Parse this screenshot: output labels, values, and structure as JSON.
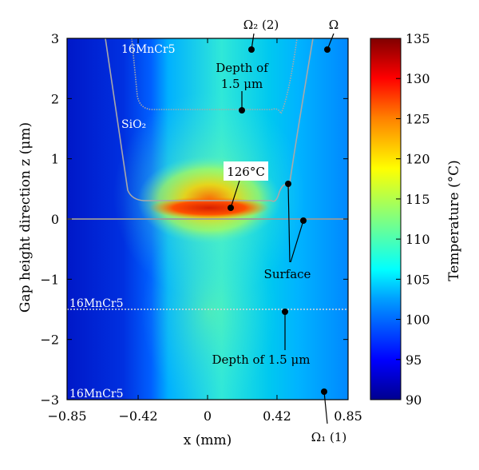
{
  "chart_data": {
    "type": "heatmap",
    "title": "",
    "xlabel": "x (mm)",
    "ylabel": "Gap height direction z (μm)",
    "xlim": [
      -0.85,
      0.85
    ],
    "ylim": [
      -3,
      3
    ],
    "x_ticks": [
      "−0.85",
      "−0.42",
      "0",
      "0.42",
      "0.85"
    ],
    "x_tick_values": [
      -0.85,
      -0.42,
      0,
      0.42,
      0.85
    ],
    "y_ticks": [
      "3",
      "2",
      "1",
      "0",
      "−1",
      "−2",
      "−3"
    ],
    "y_tick_values": [
      3,
      2,
      1,
      0,
      -1,
      -2,
      -3
    ],
    "colorbar": {
      "label": "Temperature (°C)",
      "min": 90,
      "max": 135,
      "ticks": [
        "135",
        "130",
        "125",
        "120",
        "115",
        "110",
        "105",
        "100",
        "95",
        "90"
      ],
      "tick_values": [
        135,
        130,
        125,
        120,
        115,
        110,
        105,
        100,
        95,
        90
      ],
      "colors": [
        "#00008f",
        "#0000ff",
        "#00a0ff",
        "#00ffff",
        "#80ff80",
        "#ffff00",
        "#ff8000",
        "#ff0000",
        "#800000"
      ]
    },
    "max_temperature": {
      "value": 126,
      "label": "126°C",
      "x": 0.12,
      "z": 0.2
    },
    "surface_z": 0,
    "depth_lines": [
      {
        "label": "Depth of 1.5 μm",
        "z": -1.5,
        "region": "16MnCr5 (1)"
      },
      {
        "label_line1": "Depth of",
        "label_line2": "1.5 μm",
        "z": 1.8,
        "region": "16MnCr5 (2)"
      }
    ],
    "annotations": {
      "omega2": "Ω₂ (2)",
      "omega": "Ω",
      "omega1": "Ω₁ (1)",
      "surface": "Surface",
      "peak": "126°C",
      "depth_top_line1": "Depth of",
      "depth_top_line2": "1.5 μm",
      "depth_bottom": "Depth of 1.5 μm"
    },
    "materials": {
      "top": "16MnCr5",
      "sio2": "SiO₂",
      "middle": "16MnCr5",
      "bottom": "16MnCr5"
    }
  }
}
